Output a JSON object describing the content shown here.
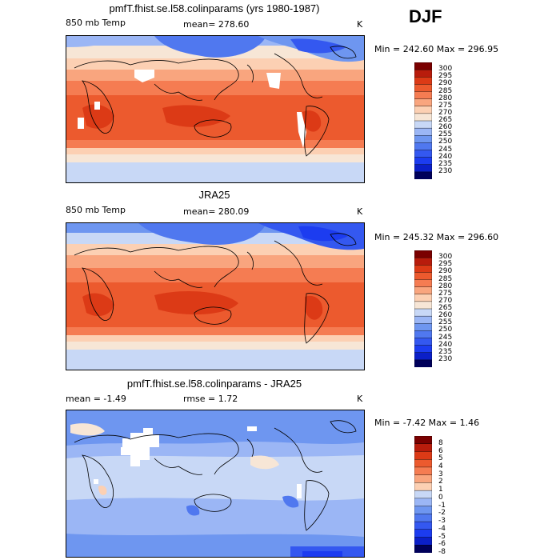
{
  "season": "DJF",
  "chart_data": [
    {
      "type": "heatmap",
      "title": "pmfT.fhist.se.l58.colinparams (yrs 1980-1987)",
      "variable": "850 mb Temp",
      "mean_label": "mean=",
      "mean": "278.60",
      "units": "K",
      "min_max_text": "Min = 242.60 Max = 296.95",
      "colorbar_levels": [
        "300",
        "295",
        "290",
        "285",
        "280",
        "275",
        "270",
        "265",
        "260",
        "255",
        "250",
        "245",
        "240",
        "235",
        "230"
      ],
      "range": [
        230,
        300
      ]
    },
    {
      "type": "heatmap",
      "title": "JRA25",
      "variable": "850 mb Temp",
      "mean_label": "mean=",
      "mean": "280.09",
      "units": "K",
      "min_max_text": "Min = 245.32 Max = 296.60",
      "colorbar_levels": [
        "300",
        "295",
        "290",
        "285",
        "280",
        "275",
        "270",
        "265",
        "260",
        "255",
        "250",
        "245",
        "240",
        "235",
        "230"
      ],
      "range": [
        230,
        300
      ]
    },
    {
      "type": "heatmap",
      "title": "pmfT.fhist.se.l58.colinparams - JRA25",
      "mean_label": "mean =",
      "mean": "-1.49",
      "rmse_label": "rmse =",
      "rmse": "1.72",
      "units": "K",
      "min_max_text": "Min = -7.42 Max = 1.46",
      "colorbar_levels": [
        "8",
        "6",
        "5",
        "4",
        "3",
        "2",
        "1",
        "0",
        "-1",
        "-2",
        "-3",
        "-4",
        "-5",
        "-6",
        "-8"
      ],
      "range": [
        -8,
        8
      ]
    }
  ],
  "colors": {
    "temp_scale": [
      "#00005a",
      "#0b1fc8",
      "#1c3cf0",
      "#3458f0",
      "#5078ef",
      "#6e96f0",
      "#9bb6f5",
      "#c8d8f6",
      "#f7e6d6",
      "#fcd0b3",
      "#f9a57e",
      "#f57c52",
      "#ec5a2e",
      "#dc3a16",
      "#b81c0c",
      "#7a0000"
    ],
    "diff_scale": [
      "#00005a",
      "#0b1fc8",
      "#1c3cf0",
      "#3458f0",
      "#5078ef",
      "#6e96f0",
      "#9bb6f5",
      "#c8d8f6",
      "#fcd0b3",
      "#f9a57e",
      "#f57c52",
      "#ec5a2e",
      "#dc3a16",
      "#b81c0c",
      "#7a0000"
    ]
  }
}
